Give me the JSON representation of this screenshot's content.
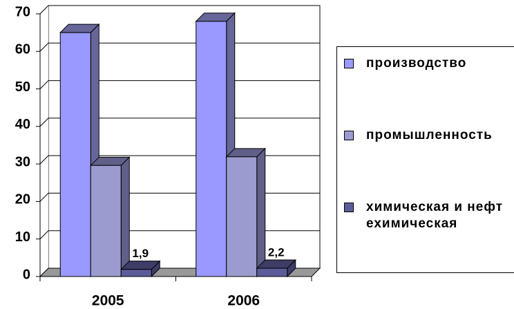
{
  "chart_data": {
    "type": "bar3d",
    "categories": [
      "2005",
      "2006"
    ],
    "series": [
      {
        "name": "производство",
        "color": "#9999ff",
        "side": "#666699",
        "values": [
          65,
          68
        ]
      },
      {
        "name": "промышленность",
        "color": "#9b9bcf",
        "side": "#5f5f88",
        "values": [
          29.6,
          31.9
        ]
      },
      {
        "name": "химическая и нефтехимическая",
        "color": "#5c5c99",
        "side": "#3d3d66",
        "values": [
          1.9,
          2.2
        ],
        "value_labels": [
          "1,9",
          "2,2"
        ]
      }
    ],
    "ylim": [
      0,
      70
    ],
    "yticks": [
      0,
      10,
      20,
      30,
      40,
      50,
      60,
      70
    ],
    "grid": true,
    "legend": "right"
  }
}
